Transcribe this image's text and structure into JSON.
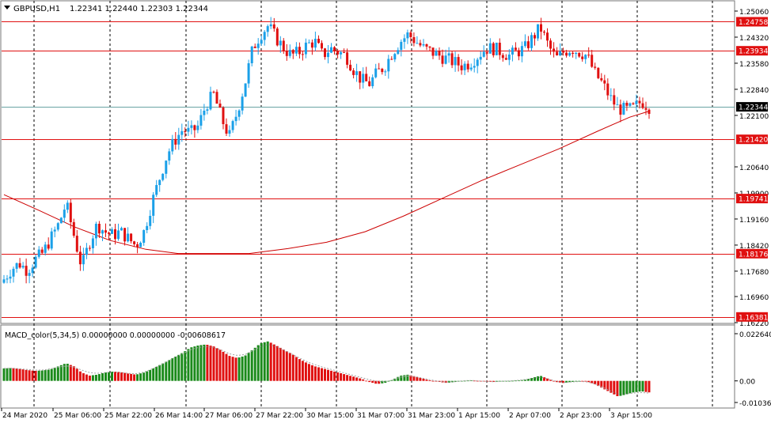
{
  "header": {
    "symbol": "GBPUSD,H1",
    "ohlc": "1.22341 1.22440 1.22303 1.22344"
  },
  "macd_label": "MACD_color(5,34,5) 0.00000000 0.00000000 -0.00608617",
  "colors": {
    "bull": "#1aa0e8",
    "bear": "#e01010",
    "level_line": "#e01010",
    "ma_line": "#cc0000",
    "hist_bull": "#1a8a1a",
    "hist_bear": "#e01010",
    "signal_line": "#a0a0a0",
    "current_price_line": "#6aa3a3"
  },
  "chart_data": [
    {
      "type": "candlestick",
      "name": "GBPUSD,H1",
      "ylim": [
        1.1622,
        1.2506
      ],
      "price_ticks": [
        "1.25060",
        "1.24320",
        "1.23580",
        "1.22840",
        "1.22100",
        "1.20640",
        "1.19900",
        "1.19160",
        "1.18420",
        "1.17680",
        "1.16960",
        "1.16220"
      ],
      "x_ticks": [
        "24 Mar 2020",
        "25 Mar 06:00",
        "25 Mar 22:00",
        "26 Mar 14:00",
        "27 Mar 06:00",
        "27 Mar 22:00",
        "30 Mar 15:00",
        "31 Mar 07:00",
        "31 Mar 23:00",
        "1 Apr 15:00",
        "2 Apr 07:00",
        "2 Apr 23:00",
        "3 Apr 15:00"
      ],
      "levels": [
        {
          "price": 1.24758,
          "label": "1.24758"
        },
        {
          "price": 1.23934,
          "label": "1.23934"
        },
        {
          "price": 1.2142,
          "label": "1.21420"
        },
        {
          "price": 1.19741,
          "label": "1.19741"
        },
        {
          "price": 1.18176,
          "label": "1.18176"
        },
        {
          "price": 1.16381,
          "label": "1.16381"
        }
      ],
      "current_price": {
        "price": 1.22344,
        "label": "1.22344"
      },
      "close_path": [
        1.1745,
        1.1775,
        1.179,
        1.177,
        1.18,
        1.182,
        1.186,
        1.19,
        1.196,
        1.187,
        1.178,
        1.185,
        1.19,
        1.188,
        1.187,
        1.188,
        1.186,
        1.184,
        1.188,
        1.196,
        1.203,
        1.21,
        1.214,
        1.217,
        1.216,
        1.218,
        1.224,
        1.227,
        1.22,
        1.215,
        1.222,
        1.23,
        1.24,
        1.244,
        1.2465,
        1.243,
        1.24,
        1.238,
        1.239,
        1.241,
        1.242,
        1.238,
        1.24,
        1.239,
        1.238,
        1.234,
        1.231,
        1.23,
        1.233,
        1.235,
        1.239,
        1.242,
        1.244,
        1.242,
        1.24,
        1.239,
        1.238,
        1.237,
        1.236,
        1.235,
        1.236,
        1.238,
        1.24,
        1.24,
        1.239,
        1.238,
        1.239,
        1.24,
        1.243,
        1.246,
        1.241,
        1.237,
        1.239,
        1.24,
        1.239,
        1.238,
        1.233,
        1.23,
        1.226,
        1.223,
        1.2225,
        1.223,
        1.225,
        1.2234
      ],
      "moving_average": [
        {
          "x": 0.0,
          "y": 1.1985
        },
        {
          "x": 0.055,
          "y": 1.194
        },
        {
          "x": 0.11,
          "y": 1.1893
        },
        {
          "x": 0.165,
          "y": 1.1855
        },
        {
          "x": 0.22,
          "y": 1.183
        },
        {
          "x": 0.27,
          "y": 1.1818
        },
        {
          "x": 0.32,
          "y": 1.1818
        },
        {
          "x": 0.38,
          "y": 1.1818
        },
        {
          "x": 0.44,
          "y": 1.1832
        },
        {
          "x": 0.5,
          "y": 1.185
        },
        {
          "x": 0.56,
          "y": 1.188
        },
        {
          "x": 0.62,
          "y": 1.1925
        },
        {
          "x": 0.68,
          "y": 1.1975
        },
        {
          "x": 0.74,
          "y": 1.2025
        },
        {
          "x": 0.8,
          "y": 1.207
        },
        {
          "x": 0.86,
          "y": 1.2115
        },
        {
          "x": 0.92,
          "y": 1.2165
        },
        {
          "x": 0.97,
          "y": 1.2205
        },
        {
          "x": 1.0,
          "y": 1.2222
        }
      ]
    },
    {
      "type": "histogram",
      "name": "MACD_color(5,34,5)",
      "ylim": [
        -0.01036,
        0.02264
      ],
      "ticks": [
        "0.022640",
        "0.00",
        "-0.010361"
      ],
      "values": [
        0.006,
        0.0062,
        0.0058,
        0.0052,
        0.0048,
        0.005,
        0.0055,
        0.007,
        0.0085,
        0.007,
        0.004,
        0.0025,
        0.003,
        0.004,
        0.0045,
        0.0042,
        0.0035,
        0.003,
        0.004,
        0.0055,
        0.0075,
        0.0095,
        0.0115,
        0.0135,
        0.016,
        0.017,
        0.0175,
        0.0165,
        0.0145,
        0.012,
        0.011,
        0.012,
        0.015,
        0.018,
        0.019,
        0.017,
        0.015,
        0.013,
        0.0105,
        0.0085,
        0.007,
        0.006,
        0.005,
        0.004,
        0.003,
        0.002,
        0.001,
        -0.0005,
        -0.0015,
        -0.001,
        0.0005,
        0.0025,
        0.003,
        0.002,
        0.001,
        0.0,
        -0.0005,
        -0.001,
        -0.0005,
        0.0,
        0.0002,
        0.0,
        -0.0003,
        -0.0005,
        -0.0002,
        0.0,
        0.0002,
        0.0005,
        0.0015,
        0.0025,
        0.001,
        -0.0005,
        -0.001,
        -0.0005,
        -0.0002,
        -0.0003,
        -0.0015,
        -0.0035,
        -0.0055,
        -0.0075,
        -0.0065,
        -0.0055,
        -0.005,
        -0.0055
      ],
      "signal": [
        0.006,
        0.0061,
        0.0058,
        0.0055,
        0.0052,
        0.0052,
        0.0058,
        0.0066,
        0.0072,
        0.0066,
        0.0052,
        0.004,
        0.0036,
        0.004,
        0.0042,
        0.004,
        0.0036,
        0.0034,
        0.0042,
        0.0056,
        0.0074,
        0.0094,
        0.0112,
        0.013,
        0.015,
        0.016,
        0.0165,
        0.016,
        0.0148,
        0.013,
        0.0122,
        0.0126,
        0.0145,
        0.0165,
        0.0175,
        0.0165,
        0.0148,
        0.013,
        0.011,
        0.0092,
        0.0078,
        0.0066,
        0.0056,
        0.0046,
        0.0036,
        0.0026,
        0.0016,
        0.0006,
        -0.0002,
        -0.0004,
        0.0004,
        0.0018,
        0.0024,
        0.002,
        0.0012,
        0.0004,
        -0.0002,
        -0.0006,
        -0.0004,
        0.0,
        0.0002,
        0.0,
        -0.0002,
        -0.0004,
        -0.0002,
        0.0,
        0.0002,
        0.0006,
        0.0012,
        0.0018,
        0.001,
        -0.0002,
        -0.0008,
        -0.0005,
        -0.0003,
        -0.0004,
        -0.0014,
        -0.003,
        -0.0048,
        -0.0064,
        -0.0062,
        -0.0058,
        -0.0056,
        -0.0058
      ]
    }
  ]
}
